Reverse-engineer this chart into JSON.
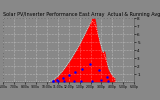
{
  "title": "Solar PV/Inverter Performance East Array  Actual & Running Avg  ",
  "bg_color": "#888888",
  "plot_bg_color": "#888888",
  "bar_color": "#ff0000",
  "avg_line_color": "#ffffff",
  "dot_color": "#0000ff",
  "y_max": 8.0,
  "y_min": 0.0,
  "y_ticks": [
    1,
    2,
    3,
    4,
    5,
    6,
    7,
    8
  ],
  "n_points": 288,
  "title_fontsize": 3.5,
  "tick_fontsize": 3.0,
  "label_color": "#000000",
  "grid_color": "#ffffff",
  "grid_alpha": 0.7,
  "grid_linestyle": ":"
}
